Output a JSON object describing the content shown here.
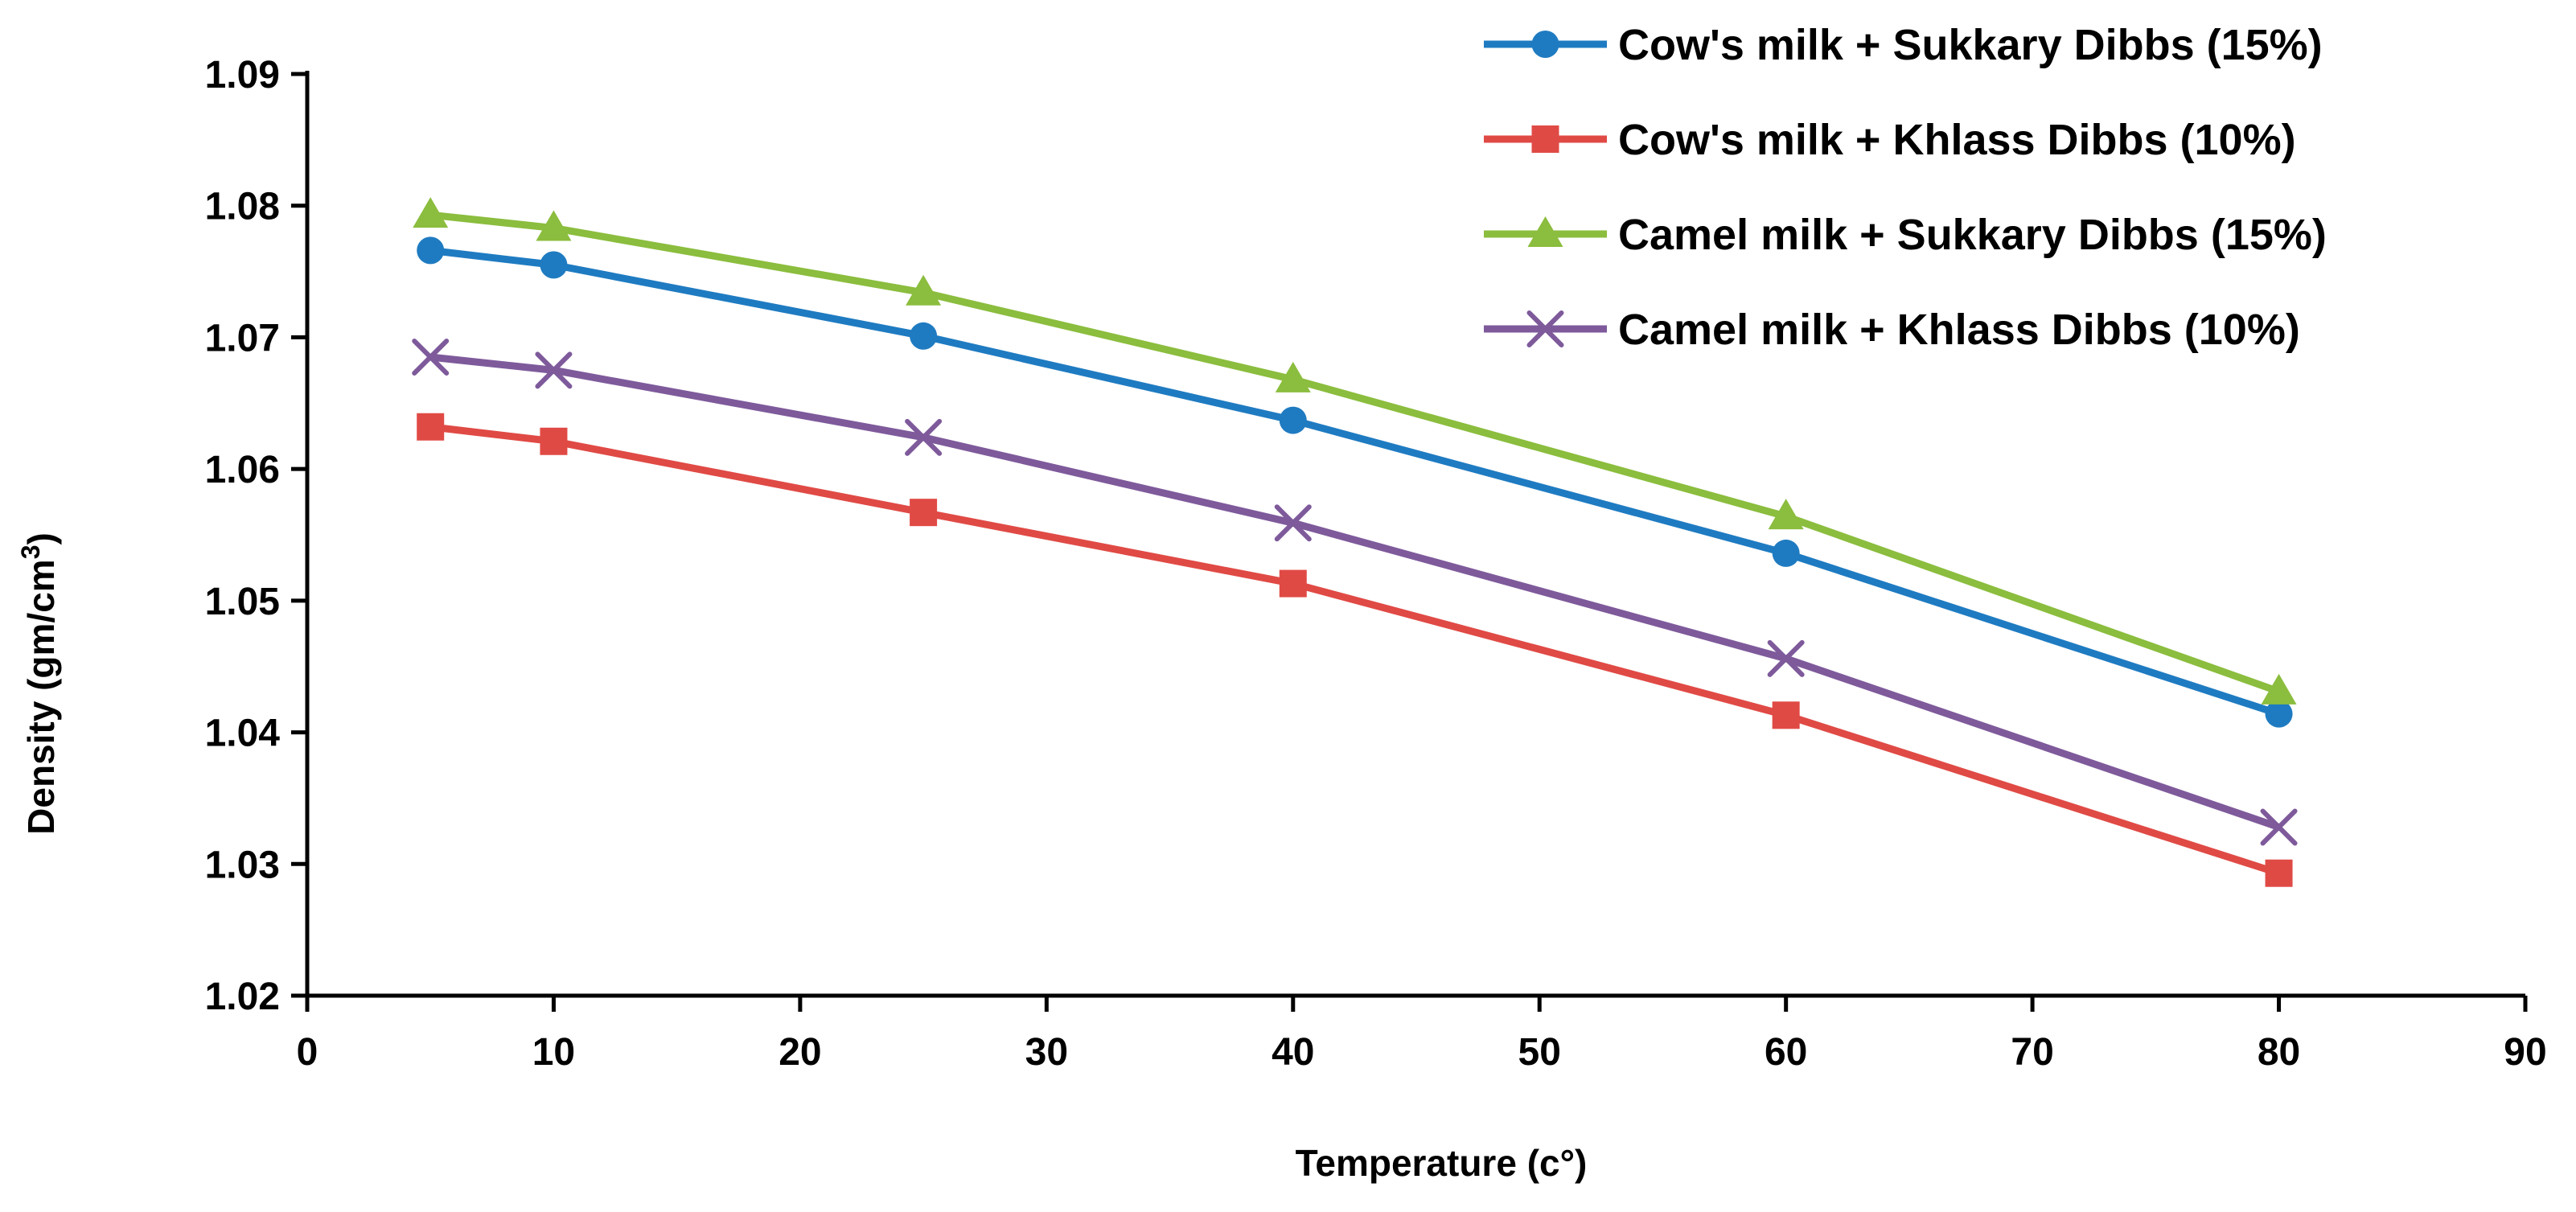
{
  "chart_data": {
    "type": "line",
    "title": "",
    "xlabel": "Temperature (c°)",
    "ylabel": "Density (gm/cm3)",
    "ylabel_base": "Density (gm/cm",
    "ylabel_sup": "3",
    "ylabel_close": ")",
    "xlim": [
      0,
      90
    ],
    "ylim": [
      1.02,
      1.09
    ],
    "x_ticks": [
      0,
      10,
      20,
      30,
      40,
      50,
      60,
      70,
      80,
      90
    ],
    "y_ticks": [
      "1.02",
      "1.03",
      "1.04",
      "1.05",
      "1.06",
      "1.07",
      "1.08",
      "1.09"
    ],
    "grid": false,
    "legend_position": "top-right",
    "x": [
      5,
      10,
      25,
      40,
      60,
      80
    ],
    "series": [
      {
        "name": "Cow's milk + Sukkary Dibbs (15%)",
        "color": "#1f7bc1",
        "marker": "circle",
        "values": [
          1.0766,
          1.0755,
          1.0701,
          1.0637,
          1.0536,
          1.0414
        ]
      },
      {
        "name": "Cow's milk + Khlass Dibbs (10%)",
        "color": "#e04a45",
        "marker": "square",
        "values": [
          1.0632,
          1.0621,
          1.0567,
          1.0513,
          1.0413,
          1.0293
        ]
      },
      {
        "name": "Camel milk + Sukkary Dibbs (15%)",
        "color": "#8bbd3e",
        "marker": "triangle",
        "values": [
          1.0793,
          1.0783,
          1.0734,
          1.0668,
          1.0564,
          1.0431
        ]
      },
      {
        "name": "Camel milk + Khlass Dibbs (10%)",
        "color": "#7e5a9b",
        "marker": "x",
        "values": [
          1.0685,
          1.0675,
          1.0624,
          1.0559,
          1.0456,
          1.0328
        ]
      }
    ]
  }
}
